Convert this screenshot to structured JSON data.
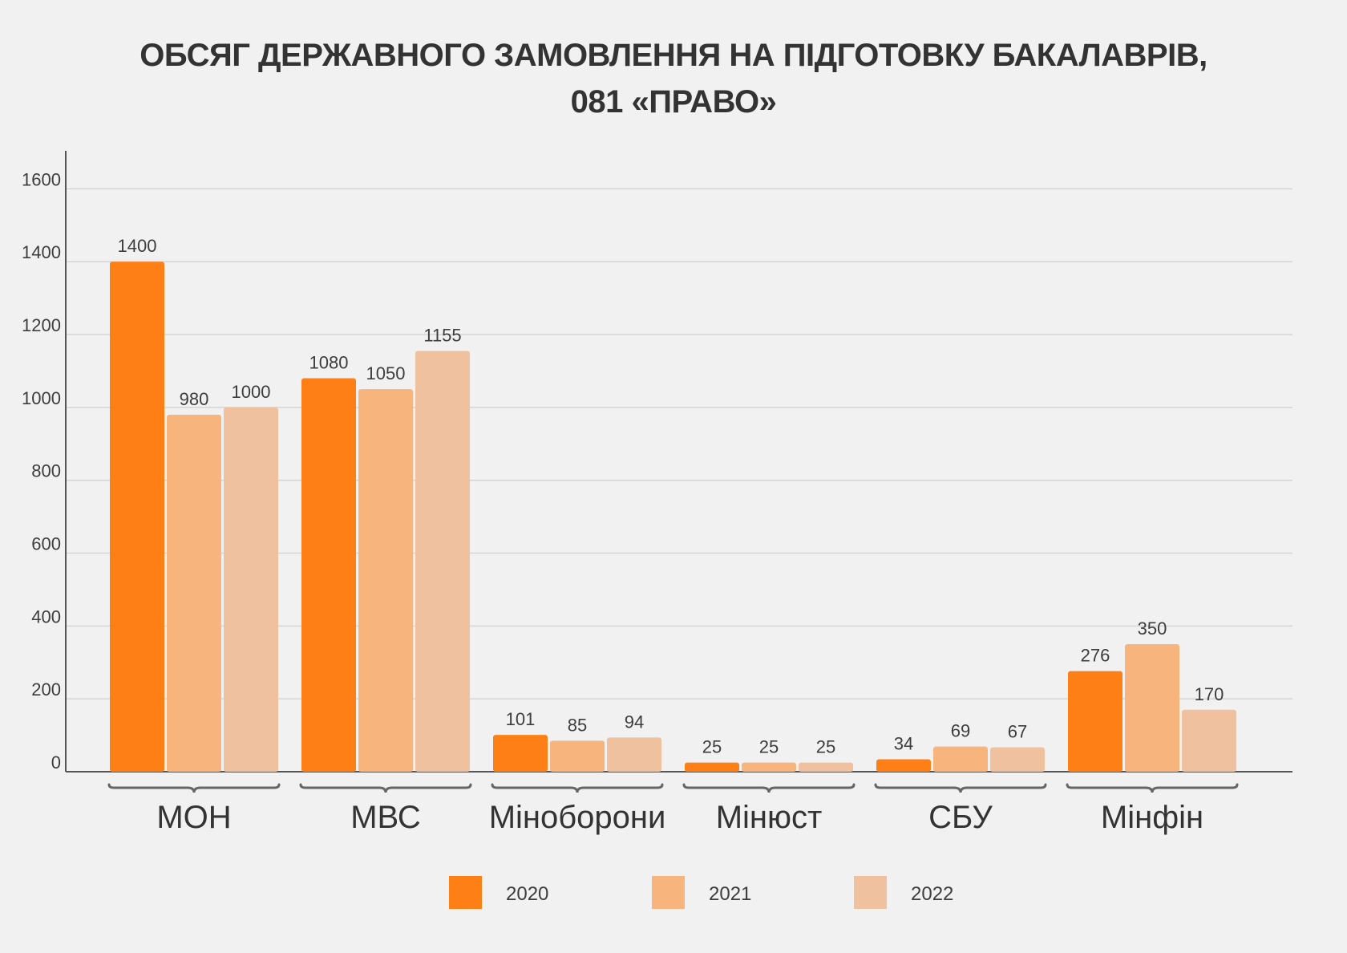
{
  "chart_data": {
    "type": "bar",
    "title_lines": [
      "ОБСЯГ ДЕРЖАВНОГО ЗАМОВЛЕННЯ НА ПІДГОТОВКУ БАКАЛАВРІВ,",
      "081 «ПРАВО»"
    ],
    "categories": [
      "МОН",
      "МВС",
      "Міноборони",
      "Мінюст",
      "СБУ",
      "Мінфін"
    ],
    "series": [
      {
        "name": "2020",
        "color": "#fd7f15",
        "values": [
          1400,
          1080,
          101,
          25,
          34,
          276
        ],
        "labels": [
          "1400",
          "1080",
          "101",
          "25",
          "34",
          "276"
        ]
      },
      {
        "name": "2021",
        "color": "#f8b47d",
        "values": [
          980,
          1050,
          85,
          25,
          69,
          350
        ],
        "labels": [
          "980",
          "1050",
          "85",
          "25",
          "69",
          "350"
        ]
      },
      {
        "name": "2022",
        "color": "#efc19e",
        "values": [
          1000,
          1155,
          94,
          25,
          67,
          170
        ],
        "labels": [
          "1000",
          "1155",
          "94",
          "25",
          "67",
          "170"
        ]
      }
    ],
    "yticks": [
      0,
      200,
      400,
      600,
      800,
      1000,
      1200,
      1400,
      1600
    ],
    "ylim": [
      0,
      1700
    ],
    "grid": true,
    "legend_position": "bottom-center"
  }
}
